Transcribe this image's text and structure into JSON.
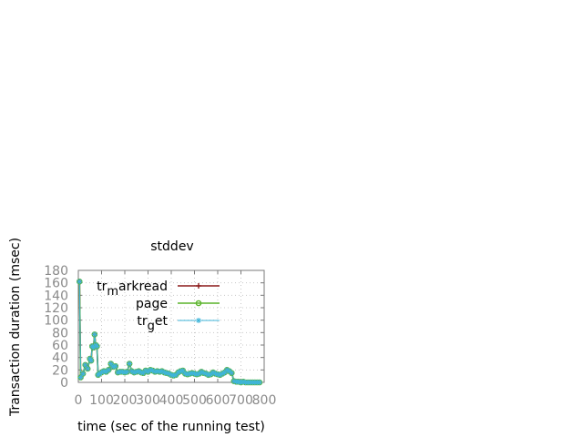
{
  "chart_data": {
    "type": "line",
    "title": "stddev",
    "xlabel": "time (sec of the running test)",
    "ylabel": "Transaction duration (msec)",
    "xlim": [
      0,
      800
    ],
    "ylim": [
      0,
      180
    ],
    "xticks": [
      "0",
      "100",
      "200",
      "300",
      "400",
      "500",
      "600",
      "700",
      "800"
    ],
    "yticks": [
      "0",
      "20",
      "40",
      "60",
      "80",
      "100",
      "120",
      "140",
      "160",
      "180"
    ],
    "grid": true,
    "legend_position": "top-right",
    "legend": [
      {
        "prefix": "tr",
        "sub": "m",
        "suffix": "arkread"
      },
      {
        "prefix": "page",
        "sub": "",
        "suffix": ""
      },
      {
        "prefix": "tr",
        "sub": "g",
        "suffix": "et"
      }
    ],
    "series": [
      {
        "name": "tr_markread",
        "color": "#8b1a1a",
        "marker": "plus",
        "x": [
          5,
          10,
          20,
          30,
          40,
          50,
          55,
          60,
          65,
          70,
          75,
          80,
          85,
          90,
          100,
          110,
          120,
          130,
          140,
          150,
          160,
          170,
          180,
          190,
          200,
          210,
          220,
          230,
          240,
          250,
          260,
          270,
          280,
          290,
          300,
          310,
          320,
          330,
          340,
          350,
          360,
          370,
          380,
          390,
          400,
          410,
          420,
          430,
          440,
          450,
          460,
          470,
          480,
          490,
          500,
          510,
          520,
          530,
          540,
          550,
          560,
          570,
          580,
          590,
          600,
          610,
          620,
          630,
          640,
          650,
          660,
          670,
          680,
          690,
          700,
          710,
          720,
          730,
          740,
          750,
          760,
          770,
          780
        ],
        "values": [
          162,
          8,
          14,
          28,
          22,
          38,
          35,
          58,
          56,
          77,
          60,
          58,
          12,
          14,
          16,
          18,
          17,
          20,
          30,
          25,
          26,
          16,
          17,
          17,
          16,
          17,
          30,
          18,
          16,
          17,
          18,
          16,
          15,
          19,
          17,
          20,
          19,
          17,
          18,
          17,
          18,
          16,
          15,
          14,
          12,
          11,
          12,
          16,
          18,
          19,
          14,
          13,
          14,
          15,
          14,
          13,
          14,
          17,
          15,
          14,
          12,
          13,
          16,
          14,
          13,
          12,
          14,
          16,
          20,
          18,
          15,
          2,
          1,
          1,
          0,
          1,
          0,
          0,
          0,
          0,
          0,
          0,
          0
        ]
      },
      {
        "name": "page",
        "color": "#5ab42a",
        "marker": "circle",
        "x": [
          5,
          10,
          20,
          30,
          40,
          50,
          55,
          60,
          65,
          70,
          75,
          80,
          85,
          90,
          100,
          110,
          120,
          130,
          140,
          150,
          160,
          170,
          180,
          190,
          200,
          210,
          220,
          230,
          240,
          250,
          260,
          270,
          280,
          290,
          300,
          310,
          320,
          330,
          340,
          350,
          360,
          370,
          380,
          390,
          400,
          410,
          420,
          430,
          440,
          450,
          460,
          470,
          480,
          490,
          500,
          510,
          520,
          530,
          540,
          550,
          560,
          570,
          580,
          590,
          600,
          610,
          620,
          630,
          640,
          650,
          660,
          670,
          680,
          690,
          700,
          710,
          720,
          730,
          740,
          750,
          760,
          770,
          780
        ],
        "values": [
          162,
          8,
          14,
          28,
          22,
          38,
          35,
          58,
          56,
          77,
          60,
          58,
          12,
          14,
          16,
          18,
          17,
          20,
          30,
          25,
          26,
          16,
          17,
          17,
          16,
          17,
          30,
          18,
          16,
          17,
          18,
          16,
          15,
          19,
          17,
          20,
          19,
          17,
          18,
          17,
          18,
          16,
          15,
          14,
          12,
          11,
          12,
          16,
          18,
          19,
          14,
          13,
          14,
          15,
          14,
          13,
          14,
          17,
          15,
          14,
          12,
          13,
          16,
          14,
          13,
          12,
          14,
          16,
          20,
          18,
          15,
          2,
          1,
          1,
          0,
          1,
          0,
          0,
          0,
          0,
          0,
          0,
          0
        ]
      },
      {
        "name": "tr_get",
        "color": "#3fb5d9",
        "marker": "star",
        "x": [
          5,
          10,
          20,
          30,
          40,
          50,
          55,
          60,
          65,
          70,
          75,
          80,
          85,
          90,
          100,
          110,
          120,
          130,
          140,
          150,
          160,
          170,
          180,
          190,
          200,
          210,
          220,
          230,
          240,
          250,
          260,
          270,
          280,
          290,
          300,
          310,
          320,
          330,
          340,
          350,
          360,
          370,
          380,
          390,
          400,
          410,
          420,
          430,
          440,
          450,
          460,
          470,
          480,
          490,
          500,
          510,
          520,
          530,
          540,
          550,
          560,
          570,
          580,
          590,
          600,
          610,
          620,
          630,
          640,
          650,
          660,
          670,
          680,
          690,
          700,
          710,
          720,
          730,
          740,
          750,
          760,
          770,
          780
        ],
        "values": [
          162,
          8,
          14,
          28,
          22,
          38,
          35,
          58,
          56,
          77,
          60,
          58,
          12,
          14,
          16,
          18,
          17,
          20,
          30,
          25,
          26,
          16,
          17,
          17,
          16,
          17,
          30,
          18,
          16,
          17,
          18,
          16,
          15,
          19,
          17,
          20,
          19,
          17,
          18,
          17,
          18,
          16,
          15,
          14,
          12,
          11,
          12,
          16,
          18,
          19,
          14,
          13,
          14,
          15,
          14,
          13,
          14,
          17,
          15,
          14,
          12,
          13,
          16,
          14,
          13,
          12,
          14,
          16,
          20,
          18,
          15,
          2,
          1,
          1,
          0,
          1,
          0,
          0,
          0,
          0,
          0,
          0,
          0
        ]
      }
    ]
  }
}
